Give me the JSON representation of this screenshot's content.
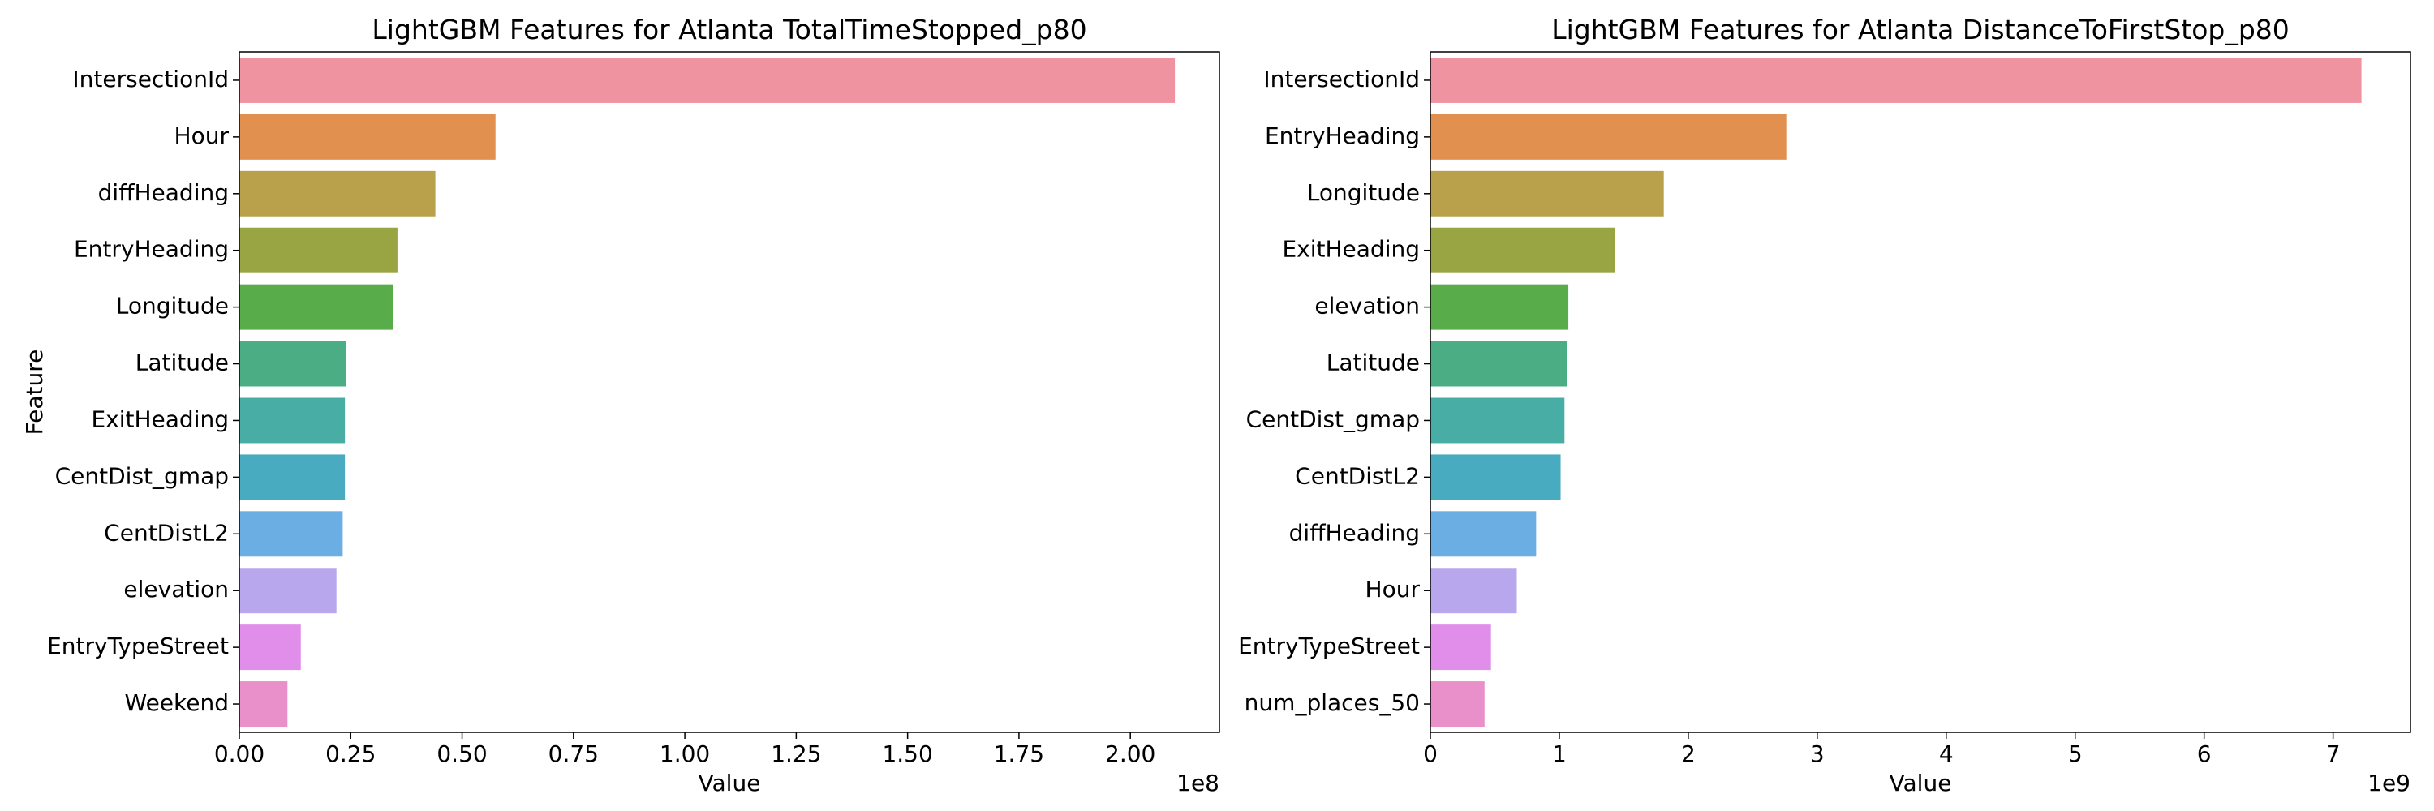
{
  "chart_data": [
    {
      "type": "bar",
      "orientation": "horizontal",
      "title": "LightGBM Features for Atlanta TotalTimeStopped_p80",
      "xlabel": "Value",
      "ylabel": "Feature",
      "x_offset_label": "1e8",
      "xlim": [
        0,
        2.2
      ],
      "xticks": [
        "0.00",
        "0.25",
        "0.50",
        "0.75",
        "1.00",
        "1.25",
        "1.50",
        "1.75",
        "2.00"
      ],
      "categories": [
        "IntersectionId",
        "Hour",
        "diffHeading",
        "EntryHeading",
        "Longitude",
        "Latitude",
        "ExitHeading",
        "CentDist_gmap",
        "CentDistL2",
        "elevation",
        "EntryTypeStreet",
        "Weekend"
      ],
      "values": [
        2.1,
        0.575,
        0.44,
        0.355,
        0.345,
        0.24,
        0.237,
        0.237,
        0.232,
        0.218,
        0.138,
        0.108
      ],
      "colors": [
        "#ee939f",
        "#e1904f",
        "#b9a14c",
        "#99a542",
        "#58ac4a",
        "#4aad84",
        "#48ada4",
        "#49abbf",
        "#6aaee4",
        "#b8a7ec",
        "#e08eea",
        "#e98fc9"
      ],
      "grid": false
    },
    {
      "type": "bar",
      "orientation": "horizontal",
      "title": "LightGBM Features for Atlanta DistanceToFirstStop_p80",
      "xlabel": "Value",
      "ylabel": "",
      "x_offset_label": "1e9",
      "xlim": [
        0,
        7.6
      ],
      "xticks": [
        "0",
        "1",
        "2",
        "3",
        "4",
        "5",
        "6",
        "7"
      ],
      "categories": [
        "IntersectionId",
        "EntryHeading",
        "Longitude",
        "ExitHeading",
        "elevation",
        "Latitude",
        "CentDist_gmap",
        "CentDistL2",
        "diffHeading",
        "Hour",
        "EntryTypeStreet",
        "num_places_50"
      ],
      "values": [
        7.22,
        2.76,
        1.81,
        1.43,
        1.07,
        1.06,
        1.04,
        1.01,
        0.82,
        0.67,
        0.47,
        0.42
      ],
      "colors": [
        "#ee939f",
        "#e1904f",
        "#b9a14c",
        "#99a542",
        "#58ac4a",
        "#4aad84",
        "#48ada4",
        "#49abbf",
        "#6aaee4",
        "#b8a7ec",
        "#e08eea",
        "#e98fc9"
      ],
      "grid": false
    }
  ]
}
